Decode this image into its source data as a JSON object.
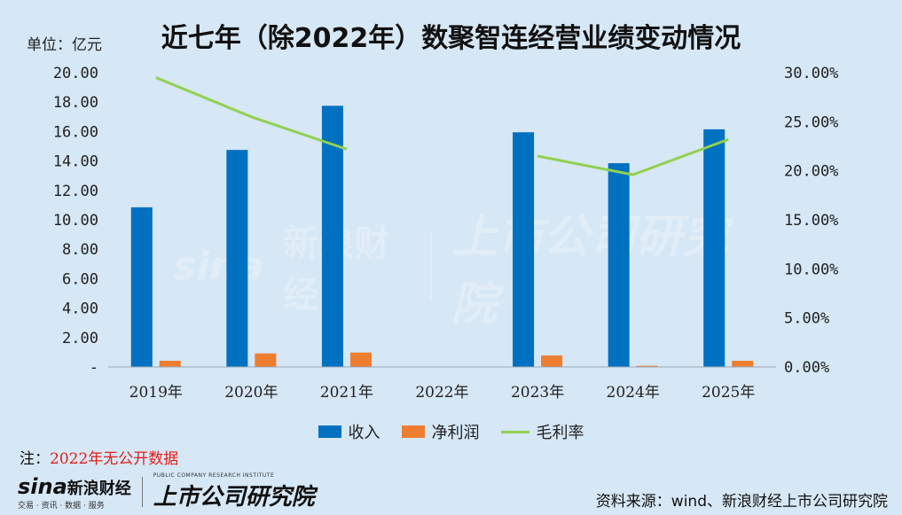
{
  "header": {
    "unit": "单位：亿元",
    "title": "近七年（除2022年）数聚智连经营业绩变动情况"
  },
  "chart_data": {
    "type": "bar",
    "title": "近七年（除2022年）数聚智连经营业绩变动情况",
    "categories": [
      "2019年",
      "2020年",
      "2021年",
      "2022年",
      "2023年",
      "2024年",
      "2025年"
    ],
    "series": [
      {
        "name": "收入",
        "type": "bar",
        "axis": "left",
        "color": "#0070c0",
        "values": [
          10.85,
          14.75,
          17.75,
          null,
          15.95,
          13.85,
          16.15
        ]
      },
      {
        "name": "净利润",
        "type": "bar",
        "axis": "left",
        "color": "#ed7d31",
        "values": [
          0.42,
          0.92,
          0.98,
          null,
          0.78,
          0.08,
          0.42
        ]
      },
      {
        "name": "毛利率",
        "type": "line",
        "axis": "right",
        "color": "#92d050",
        "values": [
          0.295,
          0.255,
          0.222,
          null,
          0.215,
          0.196,
          0.232
        ]
      }
    ],
    "y_left": {
      "range": [
        0,
        20
      ],
      "ticks": [
        "-",
        "2.00",
        "4.00",
        "6.00",
        "8.00",
        "10.00",
        "12.00",
        "14.00",
        "16.00",
        "18.00",
        "20.00"
      ]
    },
    "y_right": {
      "range": [
        0,
        0.3
      ],
      "ticks": [
        "0.00%",
        "5.00%",
        "10.00%",
        "15.00%",
        "20.00%",
        "25.00%",
        "30.00%"
      ]
    },
    "grid": false,
    "legend_position": "bottom"
  },
  "footer": {
    "note_label": "注：",
    "note_text": "2022年无公开数据",
    "source": "资料来源：wind、新浪财经上市公司研究院"
  },
  "watermark": {
    "sina_mark": "sina",
    "sina_cn": "新浪财经",
    "sina_sub": "交易 · 资讯 · 数据 · 服务",
    "institute": "上市公司研究院",
    "institute_en": "PUBLIC COMPANY RESEARCH INSTITUTE"
  }
}
